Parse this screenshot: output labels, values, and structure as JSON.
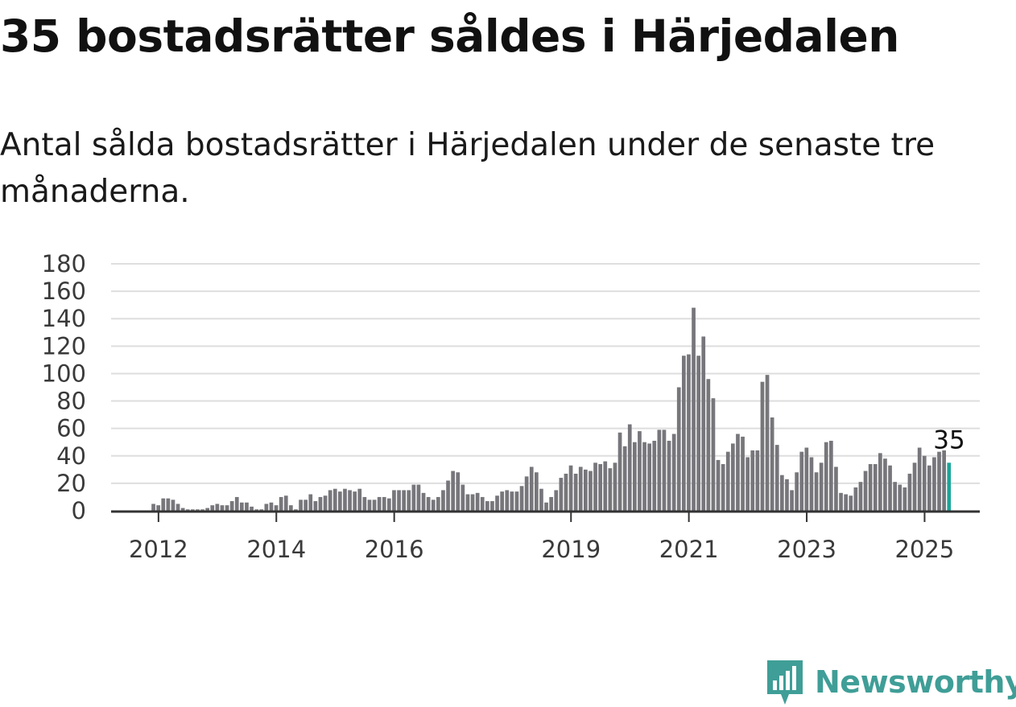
{
  "title": "35 bostadsrätter såldes i Härjedalen",
  "subtitle": "Antal sålda bostadsrätter i Härjedalen under de senaste tre månaderna.",
  "logo": {
    "text": "Newsworthy",
    "icon": "newsworthy-logo-icon"
  },
  "colors": {
    "bar": "#76767b",
    "highlight": "#1aa59a",
    "grid": "#dedede",
    "axis": "#333333",
    "logo": "#3f9e97"
  },
  "chart_data": {
    "type": "bar",
    "title": "",
    "xlabel": "",
    "ylabel": "",
    "ylim": [
      0,
      180
    ],
    "yticks": [
      0,
      20,
      40,
      60,
      80,
      100,
      120,
      140,
      160,
      180
    ],
    "xticks": [
      "2012",
      "2014",
      "2016",
      "2019",
      "2021",
      "2023",
      "2025"
    ],
    "grid": true,
    "start": "2011-05",
    "frequency": "monthly",
    "last_label": "35",
    "values": [
      0,
      0,
      0,
      0,
      0,
      0,
      0,
      5,
      4,
      9,
      9,
      8,
      5,
      2,
      1,
      1,
      1,
      1,
      2,
      4,
      5,
      4,
      4,
      7,
      10,
      6,
      6,
      3,
      1,
      1,
      5,
      6,
      4,
      10,
      11,
      4,
      1,
      8,
      8,
      12,
      7,
      10,
      11,
      15,
      16,
      14,
      16,
      15,
      14,
      16,
      10,
      8,
      8,
      10,
      10,
      9,
      15,
      15,
      15,
      15,
      19,
      19,
      13,
      10,
      8,
      10,
      15,
      22,
      29,
      28,
      19,
      12,
      12,
      13,
      10,
      7,
      7,
      11,
      14,
      15,
      14,
      14,
      18,
      25,
      32,
      28,
      16,
      6,
      10,
      15,
      24,
      27,
      33,
      27,
      32,
      30,
      29,
      35,
      34,
      36,
      31,
      35,
      57,
      47,
      63,
      50,
      58,
      50,
      49,
      51,
      59,
      59,
      51,
      56,
      90,
      113,
      114,
      148,
      113,
      127,
      96,
      82,
      37,
      34,
      43,
      49,
      56,
      54,
      39,
      44,
      44,
      94,
      99,
      68,
      48,
      26,
      23,
      15,
      28,
      43,
      46,
      39,
      28,
      35,
      50,
      51,
      32,
      13,
      12,
      11,
      17,
      21,
      29,
      34,
      34,
      42,
      38,
      33,
      21,
      19,
      17,
      27,
      35,
      46,
      40,
      33,
      39,
      43,
      44,
      35
    ]
  }
}
